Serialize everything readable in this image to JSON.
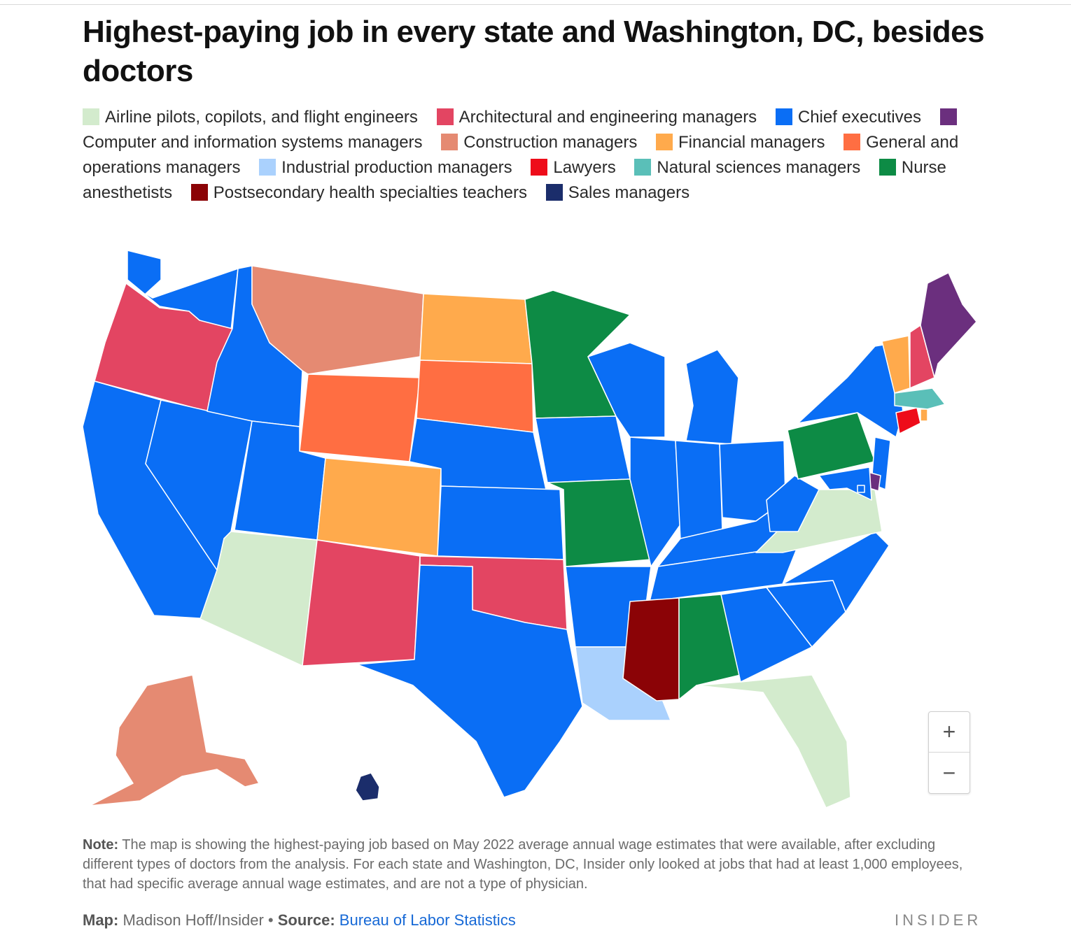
{
  "title": "Highest-paying job in every state and Washington, DC, besides doctors",
  "legend": [
    {
      "label": "Airline pilots, copilots, and flight engineers",
      "color": "#d3ebcd"
    },
    {
      "label": "Architectural and engineering managers",
      "color": "#e34562"
    },
    {
      "label": "Chief executives",
      "color": "#0a6ef5"
    },
    {
      "label": "Computer and information systems managers",
      "color": "#6b2f7e"
    },
    {
      "label": "Construction managers",
      "color": "#e58a72"
    },
    {
      "label": "Financial managers",
      "color": "#ffaa4c"
    },
    {
      "label": "General and operations managers",
      "color": "#ff6e42"
    },
    {
      "label": "Industrial production managers",
      "color": "#aad1fd"
    },
    {
      "label": "Lawyers",
      "color": "#ee0c1a"
    },
    {
      "label": "Natural sciences managers",
      "color": "#5abfb8"
    },
    {
      "label": "Nurse anesthetists",
      "color": "#0d8b45"
    },
    {
      "label": "Postsecondary health specialties teachers",
      "color": "#8b0306"
    },
    {
      "label": "Sales managers",
      "color": "#1b2d6b"
    }
  ],
  "states": [
    {
      "name": "Washington",
      "job": 2
    },
    {
      "name": "Oregon",
      "job": 1
    },
    {
      "name": "California",
      "job": 2
    },
    {
      "name": "Nevada",
      "job": 2
    },
    {
      "name": "Idaho",
      "job": 2
    },
    {
      "name": "Montana",
      "job": 4
    },
    {
      "name": "Wyoming",
      "job": 6
    },
    {
      "name": "Utah",
      "job": 2
    },
    {
      "name": "Arizona",
      "job": 0
    },
    {
      "name": "Colorado",
      "job": 5
    },
    {
      "name": "New Mexico",
      "job": 1
    },
    {
      "name": "North Dakota",
      "job": 5
    },
    {
      "name": "South Dakota",
      "job": 6
    },
    {
      "name": "Nebraska",
      "job": 2
    },
    {
      "name": "Kansas",
      "job": 2
    },
    {
      "name": "Oklahoma",
      "job": 1
    },
    {
      "name": "Texas",
      "job": 2
    },
    {
      "name": "Minnesota",
      "job": 10
    },
    {
      "name": "Iowa",
      "job": 2
    },
    {
      "name": "Missouri",
      "job": 10
    },
    {
      "name": "Arkansas",
      "job": 2
    },
    {
      "name": "Louisiana",
      "job": 7
    },
    {
      "name": "Wisconsin",
      "job": 2
    },
    {
      "name": "Illinois",
      "job": 2
    },
    {
      "name": "Michigan",
      "job": 2
    },
    {
      "name": "Indiana",
      "job": 2
    },
    {
      "name": "Ohio",
      "job": 2
    },
    {
      "name": "Kentucky",
      "job": 2
    },
    {
      "name": "Tennessee",
      "job": 2
    },
    {
      "name": "Mississippi",
      "job": 11
    },
    {
      "name": "Alabama",
      "job": 10
    },
    {
      "name": "Georgia",
      "job": 2
    },
    {
      "name": "Florida",
      "job": 0
    },
    {
      "name": "South Carolina",
      "job": 2
    },
    {
      "name": "North Carolina",
      "job": 2
    },
    {
      "name": "Virginia",
      "job": 0
    },
    {
      "name": "West Virginia",
      "job": 2
    },
    {
      "name": "Pennsylvania",
      "job": 10
    },
    {
      "name": "New York",
      "job": 2
    },
    {
      "name": "New Jersey",
      "job": 2
    },
    {
      "name": "Delaware",
      "job": 3
    },
    {
      "name": "Maryland",
      "job": 2
    },
    {
      "name": "Washington, DC",
      "job": 2
    },
    {
      "name": "Connecticut",
      "job": 8
    },
    {
      "name": "Rhode Island",
      "job": 5
    },
    {
      "name": "Massachusetts",
      "job": 9
    },
    {
      "name": "Vermont",
      "job": 5
    },
    {
      "name": "New Hampshire",
      "job": 1
    },
    {
      "name": "Maine",
      "job": 3
    },
    {
      "name": "Alaska",
      "job": 4
    },
    {
      "name": "Hawaii",
      "job": 12
    }
  ],
  "zoom": {
    "in": "+",
    "out": "−"
  },
  "note": {
    "label": "Note:",
    "text": " The map is showing the highest-paying job based on May 2022 average annual wage estimates that were available, after excluding different types of doctors from the analysis. For each state and Washington, DC, Insider only looked at jobs that had at least 1,000 employees, that had specific average annual wage estimates, and are not a type of physician."
  },
  "credits": {
    "map_label": "Map:",
    "map_author": " Madison Hoff/Insider • ",
    "source_label": "Source:",
    "source_link": "Bureau of Labor Statistics"
  },
  "brand": "INSIDER"
}
